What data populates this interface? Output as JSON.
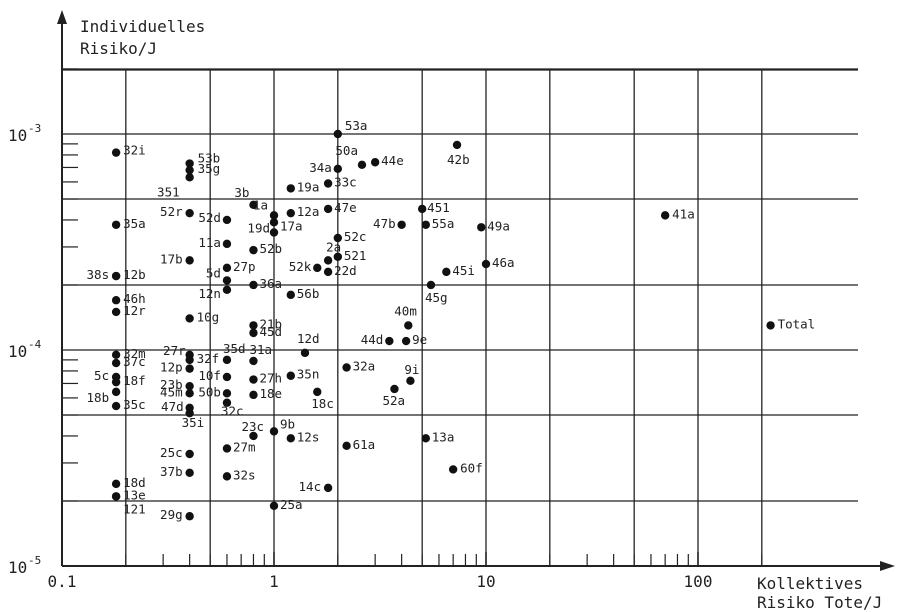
{
  "chart_data": {
    "type": "scatter",
    "y_title_line1": "Individuelles",
    "y_title_line2": "Risiko/J",
    "x_title_line1": "Kollektives",
    "x_title_line2": "Risiko Tote/J",
    "x_scale": "log",
    "y_scale": "log",
    "xlim": [
      0.1,
      200
    ],
    "ylim": [
      1e-05,
      0.0025
    ],
    "grid": true,
    "x_ticks": [
      {
        "value": 0.1,
        "label": "0.1"
      },
      {
        "value": 1,
        "label": "1"
      },
      {
        "value": 10,
        "label": "10"
      },
      {
        "value": 100,
        "label": "100"
      }
    ],
    "y_ticks": [
      {
        "value": 0.001,
        "base": "10",
        "exp": "-3"
      },
      {
        "value": 0.0001,
        "base": "10",
        "exp": "-4"
      },
      {
        "value": 1e-05,
        "base": "10",
        "exp": "-5"
      }
    ],
    "points": [
      {
        "label": "53a",
        "x": 2.0,
        "y": 0.001
      },
      {
        "label": "32i",
        "x": 0.18,
        "y": 0.00082
      },
      {
        "label": "53b",
        "x": 0.4,
        "y": 0.00073
      },
      {
        "label": "35g",
        "x": 0.4,
        "y": 0.00068
      },
      {
        "label": "351",
        "x": 0.4,
        "y": 0.00063
      },
      {
        "label": "50a",
        "x": 2.6,
        "y": 0.00072
      },
      {
        "label": "44e",
        "x": 3.0,
        "y": 0.00074
      },
      {
        "label": "42b",
        "x": 7.3,
        "y": 0.00089
      },
      {
        "label": "34a",
        "x": 2.0,
        "y": 0.00069
      },
      {
        "label": "33c",
        "x": 1.8,
        "y": 0.00059
      },
      {
        "label": "19a",
        "x": 1.2,
        "y": 0.00056
      },
      {
        "label": "3b",
        "x": 0.8,
        "y": 0.00047
      },
      {
        "label": "1a",
        "x": 1.0,
        "y": 0.00042
      },
      {
        "label": "12a",
        "x": 1.2,
        "y": 0.00043
      },
      {
        "label": "47e",
        "x": 1.8,
        "y": 0.00045
      },
      {
        "label": "451",
        "x": 5.0,
        "y": 0.00045
      },
      {
        "label": "52r",
        "x": 0.4,
        "y": 0.00043
      },
      {
        "label": "52d",
        "x": 0.6,
        "y": 0.0004
      },
      {
        "label": "17a",
        "x": 1.0,
        "y": 0.00039
      },
      {
        "label": "19d",
        "x": 1.0,
        "y": 0.00035
      },
      {
        "label": "35a",
        "x": 0.18,
        "y": 0.00038
      },
      {
        "label": "47b",
        "x": 4.0,
        "y": 0.00038
      },
      {
        "label": "55a",
        "x": 5.2,
        "y": 0.00038
      },
      {
        "label": "49a",
        "x": 9.5,
        "y": 0.00037
      },
      {
        "label": "41a",
        "x": 70,
        "y": 0.00042
      },
      {
        "label": "52c",
        "x": 2.0,
        "y": 0.00033
      },
      {
        "label": "11a",
        "x": 0.6,
        "y": 0.00031
      },
      {
        "label": "52b",
        "x": 0.8,
        "y": 0.00029
      },
      {
        "label": "2a",
        "x": 1.8,
        "y": 0.00026
      },
      {
        "label": "521",
        "x": 2.0,
        "y": 0.00027
      },
      {
        "label": "17b",
        "x": 0.4,
        "y": 0.00026
      },
      {
        "label": "27p",
        "x": 0.6,
        "y": 0.00024
      },
      {
        "label": "52k",
        "x": 1.6,
        "y": 0.00024
      },
      {
        "label": "22d",
        "x": 1.8,
        "y": 0.00023
      },
      {
        "label": "45i",
        "x": 6.5,
        "y": 0.00023
      },
      {
        "label": "46a",
        "x": 10.0,
        "y": 0.00025
      },
      {
        "label": "38s",
        "x": 0.18,
        "y": 0.00022
      },
      {
        "label": "12b",
        "x": 0.18,
        "y": 0.00022
      },
      {
        "label": "5d",
        "x": 0.6,
        "y": 0.00021
      },
      {
        "label": "36a",
        "x": 0.8,
        "y": 0.0002
      },
      {
        "label": "12n",
        "x": 0.6,
        "y": 0.00019
      },
      {
        "label": "45g",
        "x": 5.5,
        "y": 0.0002
      },
      {
        "label": "56b",
        "x": 1.2,
        "y": 0.00018
      },
      {
        "label": "46h",
        "x": 0.18,
        "y": 0.00017
      },
      {
        "label": "12r",
        "x": 0.18,
        "y": 0.00015
      },
      {
        "label": "10g",
        "x": 0.4,
        "y": 0.00014
      },
      {
        "label": "40m",
        "x": 4.3,
        "y": 0.00013
      },
      {
        "label": "21b",
        "x": 0.8,
        "y": 0.00013
      },
      {
        "label": "45d",
        "x": 0.8,
        "y": 0.00012
      },
      {
        "label": "Total",
        "x": 220,
        "y": 0.00013
      },
      {
        "label": "44d",
        "x": 3.5,
        "y": 0.00011
      },
      {
        "label": "9e",
        "x": 4.2,
        "y": 0.00011
      },
      {
        "label": "12d",
        "x": 1.4,
        "y": 9.7e-05
      },
      {
        "label": "27r",
        "x": 0.4,
        "y": 9.5e-05
      },
      {
        "label": "32m",
        "x": 0.18,
        "y": 9.5e-05
      },
      {
        "label": "32f",
        "x": 0.4,
        "y": 9e-05
      },
      {
        "label": "35d",
        "x": 0.6,
        "y": 9e-05
      },
      {
        "label": "31a",
        "x": 0.8,
        "y": 8.9e-05
      },
      {
        "label": "37c",
        "x": 0.18,
        "y": 8.7e-05
      },
      {
        "label": "12p",
        "x": 0.4,
        "y": 8.2e-05
      },
      {
        "label": "32a",
        "x": 2.2,
        "y": 8.3e-05
      },
      {
        "label": "35n",
        "x": 1.2,
        "y": 7.6e-05
      },
      {
        "label": "9i",
        "x": 4.4,
        "y": 7.2e-05
      },
      {
        "label": "5c",
        "x": 0.18,
        "y": 7.5e-05
      },
      {
        "label": "18f",
        "x": 0.18,
        "y": 7.1e-05
      },
      {
        "label": "10f",
        "x": 0.6,
        "y": 7.5e-05
      },
      {
        "label": "27h",
        "x": 0.8,
        "y": 7.3e-05
      },
      {
        "label": "23b",
        "x": 0.4,
        "y": 6.8e-05
      },
      {
        "label": "45m",
        "x": 0.4,
        "y": 6.3e-05
      },
      {
        "label": "50b",
        "x": 0.6,
        "y": 6.3e-05
      },
      {
        "label": "18e",
        "x": 0.8,
        "y": 6.2e-05
      },
      {
        "label": "18c",
        "x": 1.6,
        "y": 6.4e-05
      },
      {
        "label": "52a",
        "x": 3.7,
        "y": 6.6e-05
      },
      {
        "label": "18b",
        "x": 0.18,
        "y": 6.4e-05
      },
      {
        "label": "35c",
        "x": 0.18,
        "y": 5.5e-05
      },
      {
        "label": "47d",
        "x": 0.4,
        "y": 5.4e-05
      },
      {
        "label": "32c",
        "x": 0.6,
        "y": 5.7e-05
      },
      {
        "label": "35i",
        "x": 0.4,
        "y": 5.1e-05
      },
      {
        "label": "23c",
        "x": 0.8,
        "y": 4e-05
      },
      {
        "label": "9b",
        "x": 1.0,
        "y": 4.2e-05
      },
      {
        "label": "12s",
        "x": 1.2,
        "y": 3.9e-05
      },
      {
        "label": "61a",
        "x": 2.2,
        "y": 3.6e-05
      },
      {
        "label": "13a",
        "x": 5.2,
        "y": 3.9e-05
      },
      {
        "label": "27m",
        "x": 0.6,
        "y": 3.5e-05
      },
      {
        "label": "25c",
        "x": 0.4,
        "y": 3.3e-05
      },
      {
        "label": "60f",
        "x": 7.0,
        "y": 2.8e-05
      },
      {
        "label": "37b",
        "x": 0.4,
        "y": 2.7e-05
      },
      {
        "label": "32s",
        "x": 0.6,
        "y": 2.6e-05
      },
      {
        "label": "18d",
        "x": 0.18,
        "y": 2.4e-05
      },
      {
        "label": "14c",
        "x": 1.8,
        "y": 2.3e-05
      },
      {
        "label": "13e",
        "x": 0.18,
        "y": 2.1e-05
      },
      {
        "label": "121",
        "x": 0.18,
        "y": 2.1e-05
      },
      {
        "label": "25a",
        "x": 1.0,
        "y": 1.9e-05
      },
      {
        "label": "29g",
        "x": 0.4,
        "y": 1.7e-05
      }
    ]
  }
}
